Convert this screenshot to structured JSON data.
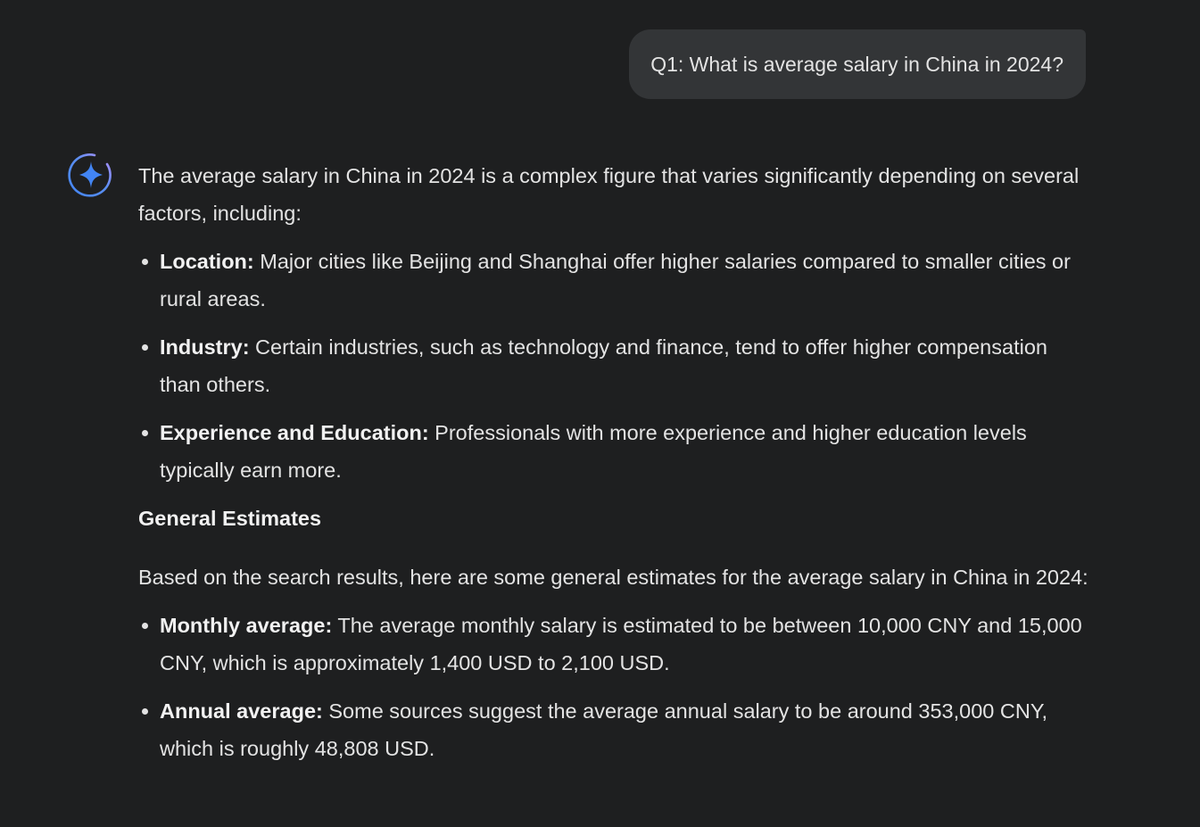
{
  "user_message": {
    "text": "Q1: What is average salary in China in 2024?"
  },
  "assistant": {
    "icon": "gemini-sparkle-icon",
    "intro": "The average salary in China in 2024 is a complex figure that varies significantly depending on several factors, including:",
    "factors": [
      {
        "label": "Location:",
        "text": " Major cities like Beijing and Shanghai offer higher salaries compared to smaller cities or rural areas."
      },
      {
        "label": "Industry:",
        "text": " Certain industries, such as technology and finance, tend to offer higher compensation than others."
      },
      {
        "label": "Experience and Education:",
        "text": " Professionals with more experience and higher education levels typically earn more."
      }
    ],
    "heading": "General Estimates",
    "estimates_intro": "Based on the search results, here are some general estimates for the average salary in China in 2024:",
    "estimates": [
      {
        "label": "Monthly average:",
        "text": " The average monthly salary is estimated to be between 10,000 CNY and 15,000 CNY, which is approximately 1,400 USD to 2,100 USD."
      },
      {
        "label": "Annual average:",
        "text": " Some sources suggest the average annual salary to be around 353,000 CNY, which is roughly 48,808 USD."
      }
    ]
  },
  "colors": {
    "background": "#1e1f20",
    "bubble": "#333537",
    "text": "#e3e3e3",
    "accent_blue": "#4285f4"
  }
}
